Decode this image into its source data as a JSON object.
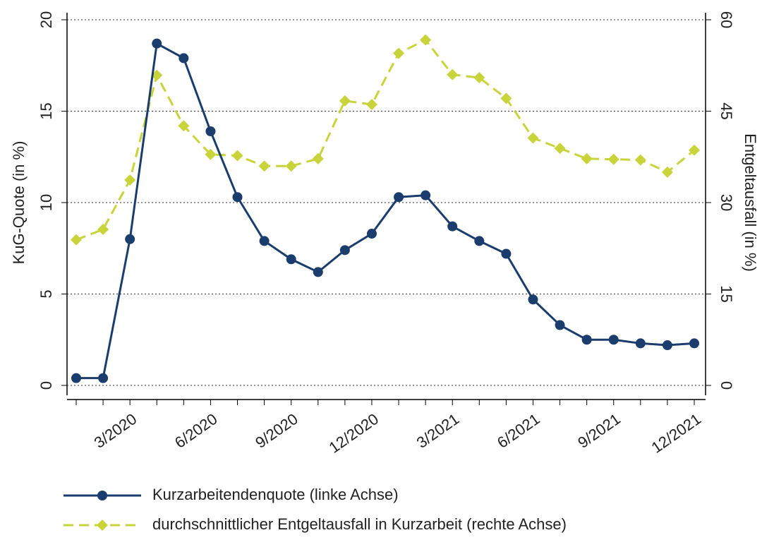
{
  "chart_data": {
    "type": "line",
    "categories": [
      null,
      null,
      "3/2020",
      null,
      null,
      "6/2020",
      null,
      null,
      "9/2020",
      null,
      null,
      "12/2020",
      null,
      null,
      "3/2021",
      null,
      null,
      "6/2021",
      null,
      null,
      "9/2021",
      null,
      null,
      "12/2021"
    ],
    "ylabel": "KuG-Quote (in %)",
    "y2label": "Entgeltausfall (in %)",
    "ylim": [
      0,
      20
    ],
    "yticks": [
      0,
      5,
      10,
      15,
      20
    ],
    "y2lim": [
      0,
      60
    ],
    "y2ticks": [
      0,
      15,
      30,
      45,
      60
    ],
    "grid": true,
    "legend": "bottom",
    "series": [
      {
        "name": "Kurzarbeitendenquote (linke Achse)",
        "color": "#1a3d6e",
        "marker": "circle",
        "dash": false,
        "values": [
          0.4,
          0.4,
          8.0,
          18.7,
          17.9,
          13.9,
          10.3,
          7.9,
          6.9,
          6.2,
          7.4,
          8.3,
          10.3,
          10.4,
          8.7,
          7.9,
          7.2,
          4.7,
          3.3,
          2.5,
          2.5,
          2.3,
          2.2,
          2.3
        ]
      },
      {
        "name": "durchschnittlicher Entgeltausfall in Kurzarbeit (rechte Achse)",
        "color": "#c8d43a",
        "marker": "diamond",
        "dash": true,
        "axis": "y2",
        "values": [
          23.9,
          25.6,
          33.7,
          50.9,
          42.6,
          37.9,
          37.7,
          36.0,
          36.0,
          37.2,
          46.7,
          46.1,
          54.5,
          56.7,
          51.0,
          50.5,
          47.1,
          40.6,
          38.9,
          37.2,
          37.1,
          37.0,
          35.0,
          38.6
        ]
      }
    ]
  }
}
